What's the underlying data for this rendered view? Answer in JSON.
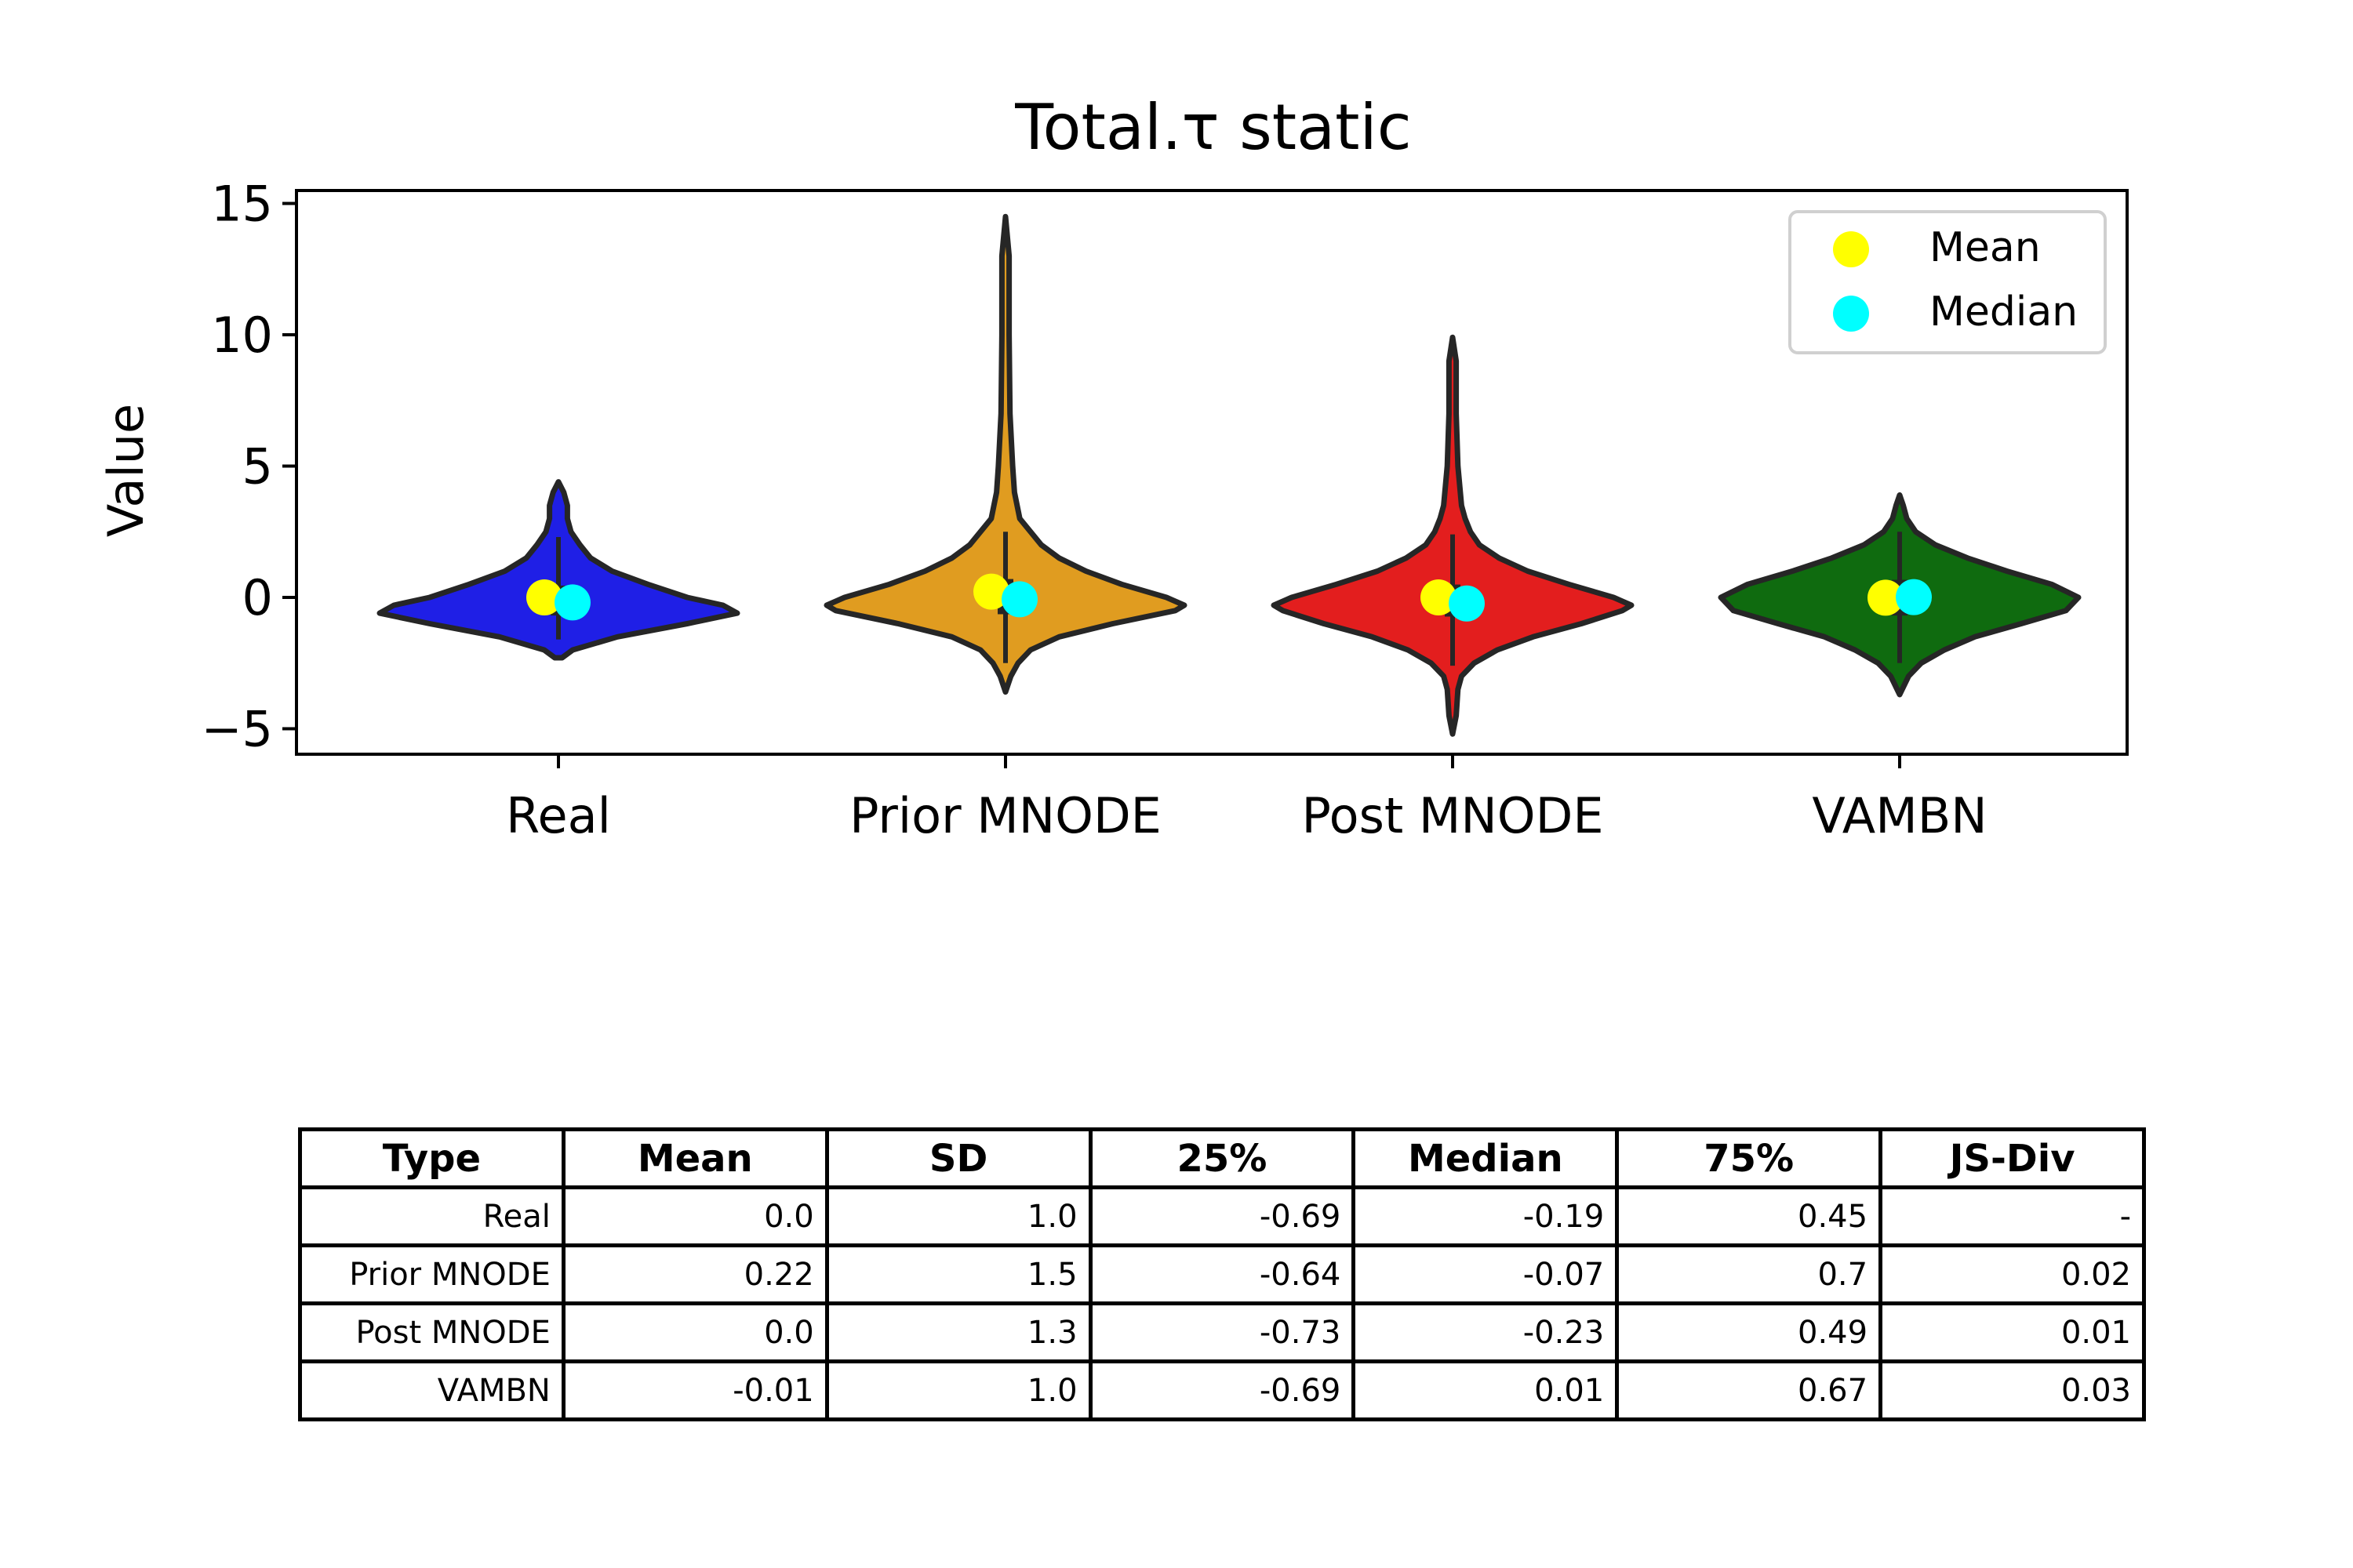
{
  "chart_data": {
    "type": "violin",
    "title": "Total.τ static",
    "xlabel": "",
    "ylabel": "Value",
    "ylim": [
      -6,
      15.5
    ],
    "yticks": [
      15,
      10,
      5,
      0,
      -5
    ],
    "ytick_labels": [
      "15",
      "10",
      "5",
      "0",
      "−5"
    ],
    "categories": [
      "Real",
      "Prior MNODE",
      "Post MNODE",
      "VAMBN"
    ],
    "colors": [
      "#1f1fe6",
      "#e09c20",
      "#e31e1e",
      "#0f6b0f"
    ],
    "legend_position": "top-right",
    "legend": [
      {
        "label": "Mean",
        "color": "#ffff00"
      },
      {
        "label": "Median",
        "color": "#00ffff"
      }
    ],
    "violins": [
      {
        "category": "Real",
        "y_min": -2.3,
        "y_max": 4.4,
        "q1": -0.69,
        "median": -0.19,
        "q3": 0.45,
        "mean": 0.0,
        "whisker_low": -1.6,
        "whisker_high": 2.3,
        "profile": [
          [
            -2.3,
            0.02
          ],
          [
            -2.0,
            0.08
          ],
          [
            -1.5,
            0.33
          ],
          [
            -1.0,
            0.72
          ],
          [
            -0.6,
            1.0
          ],
          [
            -0.3,
            0.92
          ],
          [
            0.0,
            0.72
          ],
          [
            0.5,
            0.5
          ],
          [
            1.0,
            0.3
          ],
          [
            1.5,
            0.18
          ],
          [
            2.0,
            0.12
          ],
          [
            2.5,
            0.07
          ],
          [
            3.0,
            0.05
          ],
          [
            3.5,
            0.05
          ],
          [
            4.0,
            0.03
          ],
          [
            4.4,
            0.0
          ]
        ]
      },
      {
        "category": "Prior MNODE",
        "y_min": -3.6,
        "y_max": 14.5,
        "q1": -0.64,
        "median": -0.07,
        "q3": 0.7,
        "mean": 0.22,
        "whisker_low": -2.5,
        "whisker_high": 2.5,
        "profile": [
          [
            -3.6,
            0.0
          ],
          [
            -3.0,
            0.03
          ],
          [
            -2.5,
            0.07
          ],
          [
            -2.0,
            0.14
          ],
          [
            -1.5,
            0.3
          ],
          [
            -1.0,
            0.6
          ],
          [
            -0.5,
            0.95
          ],
          [
            -0.3,
            1.0
          ],
          [
            0.0,
            0.9
          ],
          [
            0.5,
            0.65
          ],
          [
            1.0,
            0.45
          ],
          [
            1.5,
            0.3
          ],
          [
            2.0,
            0.2
          ],
          [
            3.0,
            0.08
          ],
          [
            4.0,
            0.05
          ],
          [
            5.0,
            0.04
          ],
          [
            7.0,
            0.025
          ],
          [
            10.0,
            0.02
          ],
          [
            13.0,
            0.02
          ],
          [
            14.5,
            0.0
          ]
        ]
      },
      {
        "category": "Post MNODE",
        "y_min": -5.2,
        "y_max": 9.9,
        "q1": -0.73,
        "median": -0.23,
        "q3": 0.49,
        "mean": 0.0,
        "whisker_low": -2.6,
        "whisker_high": 2.4,
        "profile": [
          [
            -5.2,
            0.0
          ],
          [
            -4.5,
            0.02
          ],
          [
            -3.5,
            0.03
          ],
          [
            -3.0,
            0.05
          ],
          [
            -2.5,
            0.12
          ],
          [
            -2.0,
            0.25
          ],
          [
            -1.5,
            0.45
          ],
          [
            -1.0,
            0.72
          ],
          [
            -0.5,
            0.95
          ],
          [
            -0.3,
            1.0
          ],
          [
            0.0,
            0.9
          ],
          [
            0.5,
            0.65
          ],
          [
            1.0,
            0.42
          ],
          [
            1.5,
            0.26
          ],
          [
            2.0,
            0.15
          ],
          [
            2.5,
            0.1
          ],
          [
            3.0,
            0.07
          ],
          [
            3.5,
            0.05
          ],
          [
            5.0,
            0.03
          ],
          [
            6.0,
            0.025
          ],
          [
            7.0,
            0.02
          ],
          [
            8.0,
            0.02
          ],
          [
            9.0,
            0.02
          ],
          [
            9.9,
            0.0
          ]
        ]
      },
      {
        "category": "VAMBN",
        "y_min": -3.7,
        "y_max": 3.9,
        "q1": -0.69,
        "median": 0.01,
        "q3": 0.67,
        "mean": -0.01,
        "whisker_low": -2.5,
        "whisker_high": 2.5,
        "profile": [
          [
            -3.7,
            0.0
          ],
          [
            -3.0,
            0.05
          ],
          [
            -2.5,
            0.12
          ],
          [
            -2.0,
            0.25
          ],
          [
            -1.5,
            0.42
          ],
          [
            -1.0,
            0.68
          ],
          [
            -0.5,
            0.93
          ],
          [
            0.0,
            1.0
          ],
          [
            0.5,
            0.85
          ],
          [
            1.0,
            0.6
          ],
          [
            1.5,
            0.38
          ],
          [
            2.0,
            0.2
          ],
          [
            2.5,
            0.09
          ],
          [
            3.0,
            0.04
          ],
          [
            3.5,
            0.02
          ],
          [
            3.9,
            0.0
          ]
        ]
      }
    ]
  },
  "table": {
    "headers": [
      "Type",
      "Mean",
      "SD",
      "25%",
      "Median",
      "75%",
      "JS-Div"
    ],
    "rows": [
      [
        "Real",
        "0.0",
        "1.0",
        "-0.69",
        "-0.19",
        "0.45",
        "-"
      ],
      [
        "Prior MNODE",
        "0.22",
        "1.5",
        "-0.64",
        "-0.07",
        "0.7",
        "0.02"
      ],
      [
        "Post MNODE",
        "0.0",
        "1.3",
        "-0.73",
        "-0.23",
        "0.49",
        "0.01"
      ],
      [
        "VAMBN",
        "-0.01",
        "1.0",
        "-0.69",
        "0.01",
        "0.67",
        "0.03"
      ]
    ]
  }
}
